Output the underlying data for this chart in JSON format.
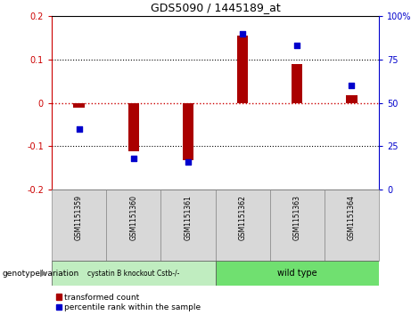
{
  "title": "GDS5090 / 1445189_at",
  "samples": [
    "GSM1151359",
    "GSM1151360",
    "GSM1151361",
    "GSM1151362",
    "GSM1151363",
    "GSM1151364"
  ],
  "transformed_count": [
    -0.012,
    -0.112,
    -0.132,
    0.155,
    0.09,
    0.018
  ],
  "percentile_rank": [
    35,
    18,
    16,
    90,
    83,
    60
  ],
  "ylim_left": [
    -0.2,
    0.2
  ],
  "ylim_right": [
    0,
    100
  ],
  "yticks_left": [
    -0.2,
    -0.1,
    0,
    0.1,
    0.2
  ],
  "yticks_right": [
    0,
    25,
    50,
    75,
    100
  ],
  "bar_color": "#aa0000",
  "scatter_color": "#0000cc",
  "zero_line_color": "#cc0000",
  "group1_label": "cystatin B knockout Cstb-/-",
  "group2_label": "wild type",
  "group1_indices": [
    0,
    1,
    2
  ],
  "group2_indices": [
    3,
    4,
    5
  ],
  "group1_color": "#c0edc0",
  "group2_color": "#70e070",
  "legend_red": "transformed count",
  "legend_blue": "percentile rank within the sample",
  "genotype_label": "genotype/variation",
  "bar_width": 0.2,
  "sample_bg_color": "#d8d8d8"
}
